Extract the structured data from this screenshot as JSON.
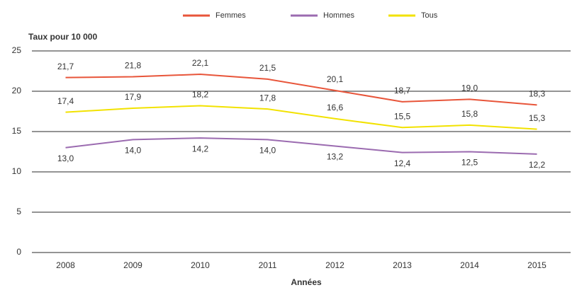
{
  "chart_data": {
    "type": "line",
    "y_axis_label": "Taux pour 10 000",
    "x_axis_label": "Années",
    "categories": [
      "2008",
      "2009",
      "2010",
      "2011",
      "2012",
      "2013",
      "2014",
      "2015"
    ],
    "series": [
      {
        "name": "Femmes",
        "color": "#e8553a",
        "values": [
          21.7,
          21.8,
          22.1,
          21.5,
          20.1,
          18.7,
          19.0,
          18.3
        ],
        "value_labels": [
          "21,7",
          "21,8",
          "22,1",
          "21,5",
          "20,1",
          "18,7",
          "19,0",
          "18,3"
        ]
      },
      {
        "name": "Hommes",
        "color": "#9b6bb0",
        "values": [
          13.0,
          14.0,
          14.2,
          14.0,
          13.2,
          12.4,
          12.5,
          12.2
        ],
        "value_labels": [
          "13,0",
          "14,0",
          "14,2",
          "14,0",
          "13,2",
          "12,4",
          "12,5",
          "12,2"
        ]
      },
      {
        "name": "Tous",
        "color": "#f2e200",
        "values": [
          17.4,
          17.9,
          18.2,
          17.8,
          16.6,
          15.5,
          15.8,
          15.3
        ],
        "value_labels": [
          "17,4",
          "17,9",
          "18,2",
          "17,8",
          "16,6",
          "15,5",
          "15,8",
          "15,3"
        ]
      }
    ],
    "ylim": [
      0,
      25
    ],
    "yticks": [
      0,
      5,
      10,
      15,
      20,
      25
    ],
    "grid": true
  }
}
